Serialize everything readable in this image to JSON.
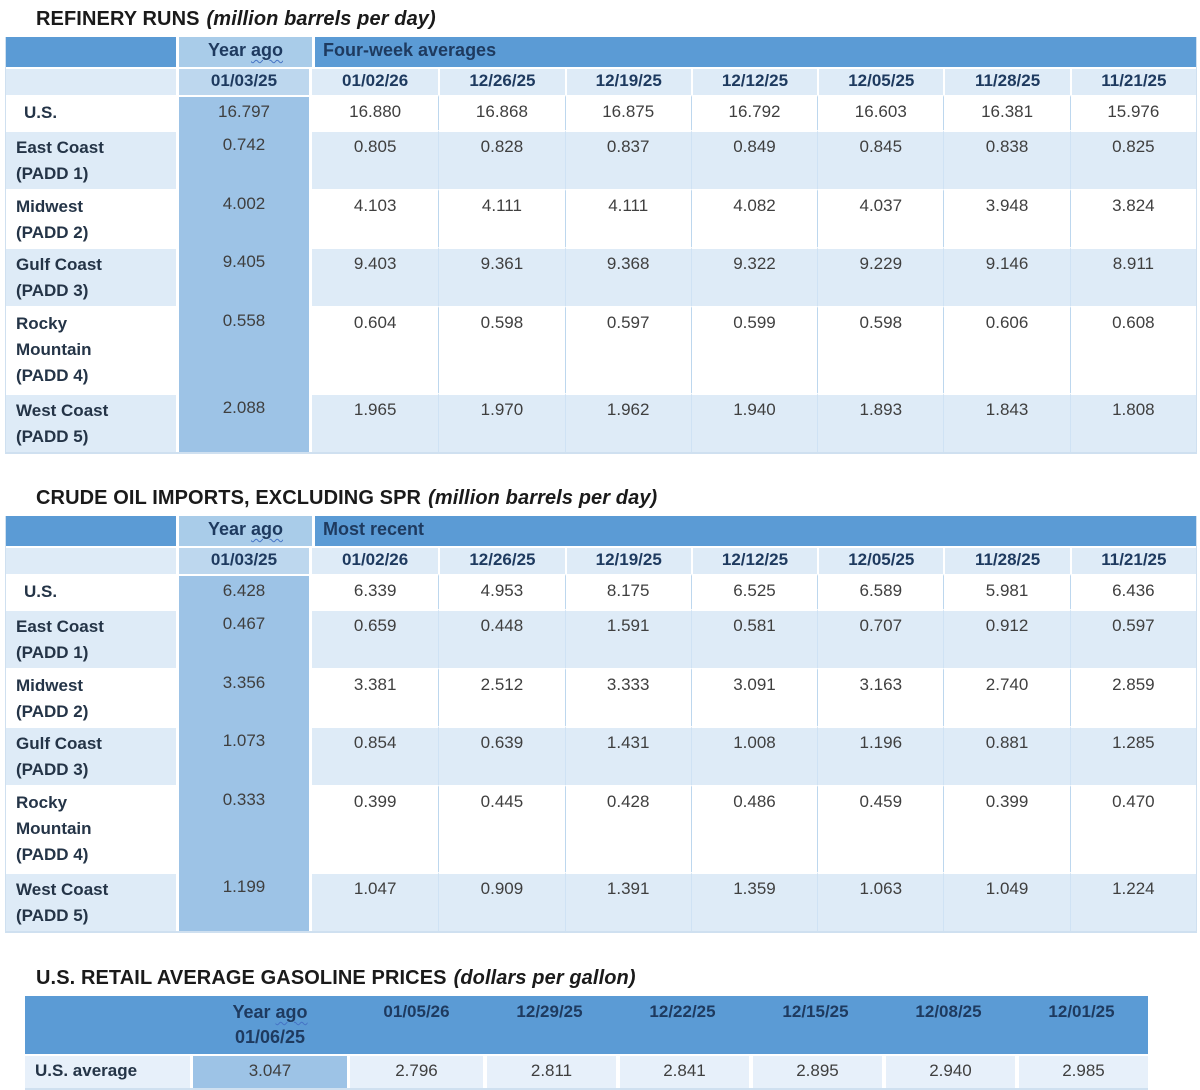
{
  "colors": {
    "header_blue": "#5b9bd5",
    "year_ago_header_blue": "#a9cce9",
    "year_ago_date_blue": "#bdd7ee",
    "year_ago_column_blue": "#9dc3e6",
    "row_stripe_blue": "#deebf7",
    "gasoline_row_blue": "#e7f0fa",
    "squiggle_blue": "#4472c4",
    "header_text": "#1e3a5f",
    "value_text": "#3f3f3f"
  },
  "tables": [
    {
      "title": "REFINERY RUNS",
      "unit_note": "(million barrels per day)",
      "group_label": "Four-week averages",
      "year_ago": {
        "text_main": "Year",
        "text_squiggle": "ago",
        "date": "01/03/25"
      },
      "dates": [
        "01/02/26",
        "12/26/25",
        "12/19/25",
        "12/12/25",
        "12/05/25",
        "11/28/25",
        "11/21/25"
      ],
      "rows": [
        {
          "label_lines": [
            "U.S."
          ],
          "indent": true,
          "year_ago": "16.797",
          "values": [
            "16.880",
            "16.868",
            "16.875",
            "16.792",
            "16.603",
            "16.381",
            "15.976"
          ]
        },
        {
          "label_lines": [
            "East Coast",
            "(PADD 1)"
          ],
          "year_ago": "0.742",
          "values": [
            "0.805",
            "0.828",
            "0.837",
            "0.849",
            "0.845",
            "0.838",
            "0.825"
          ]
        },
        {
          "label_lines": [
            "Midwest",
            "(PADD 2)"
          ],
          "year_ago": "4.002",
          "values": [
            "4.103",
            "4.111",
            "4.111",
            "4.082",
            "4.037",
            "3.948",
            "3.824"
          ]
        },
        {
          "label_lines": [
            "Gulf Coast",
            "(PADD 3)"
          ],
          "year_ago": "9.405",
          "values": [
            "9.403",
            "9.361",
            "9.368",
            "9.322",
            "9.229",
            "9.146",
            "8.911"
          ]
        },
        {
          "label_lines": [
            "Rocky",
            "Mountain",
            "(PADD 4)"
          ],
          "year_ago": "0.558",
          "values": [
            "0.604",
            "0.598",
            "0.597",
            "0.599",
            "0.598",
            "0.606",
            "0.608"
          ]
        },
        {
          "label_lines": [
            "West Coast",
            "(PADD 5)"
          ],
          "year_ago": "2.088",
          "values": [
            "1.965",
            "1.970",
            "1.962",
            "1.940",
            "1.893",
            "1.843",
            "1.808"
          ]
        }
      ]
    },
    {
      "title": "CRUDE OIL IMPORTS, EXCLUDING SPR",
      "unit_note": "(million barrels per day)",
      "group_label": "Most recent",
      "year_ago": {
        "text_main": "Year",
        "text_squiggle": "ago",
        "date": "01/03/25"
      },
      "dates": [
        "01/02/26",
        "12/26/25",
        "12/19/25",
        "12/12/25",
        "12/05/25",
        "11/28/25",
        "11/21/25"
      ],
      "rows": [
        {
          "label_lines": [
            "U.S."
          ],
          "indent": true,
          "year_ago": "6.428",
          "values": [
            "6.339",
            "4.953",
            "8.175",
            "6.525",
            "6.589",
            "5.981",
            "6.436"
          ]
        },
        {
          "label_lines": [
            "East Coast",
            "(PADD 1)"
          ],
          "year_ago": "0.467",
          "values": [
            "0.659",
            "0.448",
            "1.591",
            "0.581",
            "0.707",
            "0.912",
            "0.597"
          ]
        },
        {
          "label_lines": [
            "Midwest",
            "(PADD 2)"
          ],
          "year_ago": "3.356",
          "values": [
            "3.381",
            "2.512",
            "3.333",
            "3.091",
            "3.163",
            "2.740",
            "2.859"
          ]
        },
        {
          "label_lines": [
            "Gulf Coast",
            "(PADD 3)"
          ],
          "year_ago": "1.073",
          "values": [
            "0.854",
            "0.639",
            "1.431",
            "1.008",
            "1.196",
            "0.881",
            "1.285"
          ]
        },
        {
          "label_lines": [
            "Rocky",
            "Mountain",
            "(PADD 4)"
          ],
          "year_ago": "0.333",
          "values": [
            "0.399",
            "0.445",
            "0.428",
            "0.486",
            "0.459",
            "0.399",
            "0.470"
          ]
        },
        {
          "label_lines": [
            "West Coast",
            "(PADD 5)"
          ],
          "year_ago": "1.199",
          "values": [
            "1.047",
            "0.909",
            "1.391",
            "1.359",
            "1.063",
            "1.049",
            "1.224"
          ]
        }
      ]
    }
  ],
  "gasoline": {
    "title": "U.S. RETAIL AVERAGE GASOLINE PRICES",
    "unit_note": "(dollars per gallon)",
    "year_ago": {
      "text_main": "Year",
      "text_squiggle": "ago",
      "date": "01/06/25"
    },
    "dates": [
      "01/05/26",
      "12/29/25",
      "12/22/25",
      "12/15/25",
      "12/08/25",
      "12/01/25"
    ],
    "row": {
      "label": "U.S. average",
      "year_ago_value": "3.047",
      "values": [
        "2.796",
        "2.811",
        "2.841",
        "2.895",
        "2.940",
        "2.985"
      ]
    }
  }
}
